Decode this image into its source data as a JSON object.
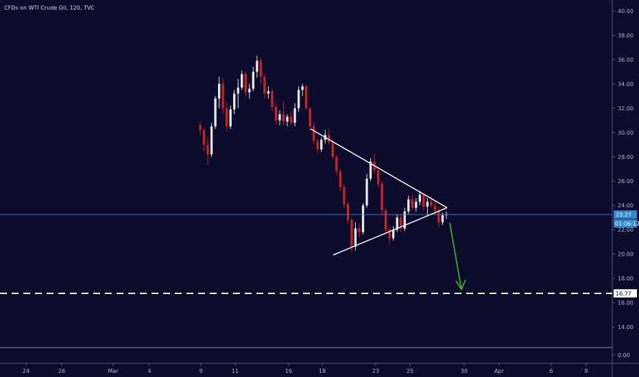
{
  "chart_data": {
    "type": "candlestick",
    "title": "CFDs on WTI Crude Oil, 120, TVC",
    "y_ticks": [
      "40.00",
      "38.00",
      "36.00",
      "34.00",
      "32.00",
      "30.00",
      "28.00",
      "26.00",
      "24.00",
      "22.00",
      "20.00",
      "18.00",
      "16.00",
      "14.00",
      "0.00"
    ],
    "x_ticks": [
      "24",
      "26",
      "Mar",
      "4",
      "9",
      "11",
      "16",
      "18",
      "23",
      "25",
      "30",
      "Apr",
      "6",
      "8"
    ],
    "price_tag": "23.27",
    "countdown": "01:06:12",
    "target_label": "16.77",
    "colors": {
      "up": "#e8e8e8",
      "down": "#d21f1f",
      "triangle": "#ffffff",
      "arrow": "#2ad42a",
      "last_line": "#3a78c9",
      "tag": "#2e89d9"
    },
    "candles": [
      [
        30.6,
        30.9,
        29.8,
        30.2
      ],
      [
        30.2,
        30.4,
        28.5,
        29.0
      ],
      [
        29.0,
        29.6,
        27.3,
        28.2
      ],
      [
        28.2,
        30.8,
        28.0,
        30.5
      ],
      [
        30.5,
        33.0,
        30.3,
        32.8
      ],
      [
        32.8,
        34.6,
        32.0,
        34.0
      ],
      [
        34.0,
        34.5,
        31.5,
        32.0
      ],
      [
        32.0,
        32.5,
        30.1,
        30.5
      ],
      [
        30.5,
        32.2,
        30.3,
        31.9
      ],
      [
        31.9,
        33.5,
        31.5,
        33.2
      ],
      [
        33.2,
        34.4,
        32.0,
        33.7
      ],
      [
        33.7,
        35.1,
        33.5,
        34.8
      ],
      [
        34.8,
        35.0,
        33.0,
        33.3
      ],
      [
        33.3,
        34.0,
        32.8,
        33.6
      ],
      [
        33.6,
        35.4,
        33.4,
        35.0
      ],
      [
        35.0,
        36.3,
        34.5,
        35.9
      ],
      [
        35.9,
        36.2,
        34.0,
        34.6
      ],
      [
        34.6,
        34.8,
        32.8,
        33.2
      ],
      [
        33.2,
        33.8,
        32.8,
        33.4
      ],
      [
        33.4,
        33.6,
        31.8,
        32.1
      ],
      [
        32.1,
        32.4,
        30.7,
        31.0
      ],
      [
        31.0,
        31.8,
        30.6,
        31.5
      ],
      [
        31.5,
        32.6,
        30.5,
        30.9
      ],
      [
        30.9,
        31.5,
        30.5,
        31.3
      ],
      [
        31.3,
        31.7,
        30.6,
        30.8
      ],
      [
        30.8,
        32.4,
        30.5,
        32.0
      ],
      [
        32.0,
        33.8,
        31.7,
        33.5
      ],
      [
        33.5,
        34.0,
        33.0,
        33.8
      ],
      [
        33.8,
        33.9,
        31.8,
        32.0
      ],
      [
        32.0,
        32.1,
        30.2,
        30.5
      ],
      [
        30.5,
        30.8,
        29.0,
        29.3
      ],
      [
        29.3,
        29.5,
        28.3,
        28.6
      ],
      [
        28.6,
        29.6,
        28.4,
        29.4
      ],
      [
        29.4,
        30.2,
        29.1,
        29.8
      ],
      [
        29.8,
        30.3,
        29.0,
        29.2
      ],
      [
        29.2,
        29.4,
        27.8,
        28.0
      ],
      [
        28.0,
        28.2,
        26.5,
        26.8
      ],
      [
        26.8,
        27.0,
        25.2,
        25.5
      ],
      [
        25.5,
        25.7,
        23.8,
        24.1
      ],
      [
        24.1,
        24.3,
        22.5,
        22.8
      ],
      [
        22.8,
        23.0,
        20.1,
        20.6
      ],
      [
        20.6,
        22.6,
        20.3,
        22.1
      ],
      [
        22.1,
        22.5,
        21.4,
        21.8
      ],
      [
        21.8,
        24.2,
        21.6,
        24.0
      ],
      [
        24.0,
        26.6,
        23.8,
        26.2
      ],
      [
        26.2,
        27.9,
        26.0,
        27.6
      ],
      [
        27.6,
        28.3,
        26.6,
        26.9
      ],
      [
        26.9,
        27.1,
        25.5,
        25.8
      ],
      [
        25.8,
        26.0,
        23.3,
        23.6
      ],
      [
        23.6,
        23.8,
        21.6,
        22.0
      ],
      [
        22.0,
        22.2,
        20.8,
        21.3
      ],
      [
        21.3,
        22.3,
        21.1,
        22.0
      ],
      [
        22.0,
        23.3,
        21.8,
        23.0
      ],
      [
        23.0,
        23.3,
        21.8,
        22.1
      ],
      [
        22.1,
        23.8,
        21.9,
        23.5
      ],
      [
        23.5,
        24.8,
        23.3,
        24.5
      ],
      [
        24.5,
        24.9,
        23.6,
        23.8
      ],
      [
        23.8,
        24.6,
        23.5,
        24.3
      ],
      [
        24.3,
        25.2,
        24.0,
        24.9
      ],
      [
        24.9,
        25.0,
        23.6,
        23.9
      ],
      [
        23.9,
        24.6,
        23.2,
        24.3
      ],
      [
        24.3,
        24.8,
        23.8,
        24.0
      ],
      [
        24.0,
        24.4,
        23.3,
        23.6
      ],
      [
        23.6,
        23.9,
        22.2,
        22.6
      ],
      [
        22.6,
        23.4,
        22.4,
        23.2
      ],
      [
        23.2,
        23.5,
        22.9,
        23.27
      ]
    ]
  }
}
